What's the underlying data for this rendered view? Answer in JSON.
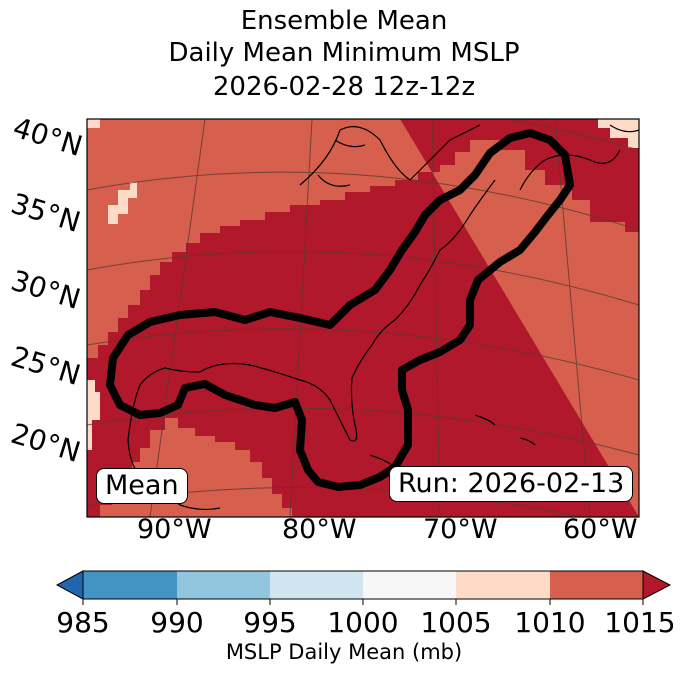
{
  "title": {
    "line1": "Ensemble Mean",
    "line2": "Daily Mean Minimum MSLP",
    "line3": "2026-02-28 12z-12z"
  },
  "map": {
    "latitude_labels": [
      "40°N",
      "35°N",
      "30°N",
      "25°N",
      "20°N"
    ],
    "longitude_labels": [
      "90°W",
      "80°W",
      "70°W",
      "60°W"
    ],
    "mean_box": "Mean",
    "run_box": "Run: 2026-02-13",
    "colors": {
      "r1010": "#d6604d",
      "r1015": "#b2182b",
      "r1005": "#fddbc7",
      "contour": "#000000",
      "graticule": "#5a3a30"
    }
  },
  "colorbar": {
    "ticks": [
      "985",
      "990",
      "995",
      "1000",
      "1005",
      "1010",
      "1015"
    ],
    "label": "MSLP Daily Mean (mb)",
    "colors": [
      "#2166ac",
      "#4393c3",
      "#92c5de",
      "#d1e5f0",
      "#f7f7f7",
      "#fddbc7",
      "#d6604d",
      "#b2182b"
    ]
  }
}
